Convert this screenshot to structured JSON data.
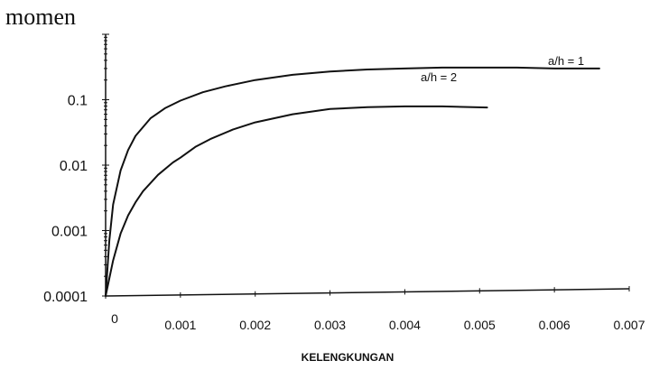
{
  "chart_data": {
    "type": "line",
    "ylabel": "momen",
    "xlabel": "KELENGKUNGAN",
    "y_scale": "log",
    "xlim": [
      0,
      0.007
    ],
    "ylim": [
      0.0001,
      1
    ],
    "x_tick_labels": [
      "0",
      "0.001",
      "0.002",
      "0.003",
      "0.004",
      "0.005",
      "0.006",
      "0.007"
    ],
    "y_tick_labels": [
      "0.0001",
      "0.001",
      "0.01",
      "0.1"
    ],
    "grid": false,
    "series": [
      {
        "name": "a/h = 1",
        "x": [
          0,
          5e-05,
          0.0001,
          0.0002,
          0.0003,
          0.0004,
          0.0006,
          0.0008,
          0.001,
          0.0013,
          0.0016,
          0.002,
          0.0025,
          0.003,
          0.0035,
          0.004,
          0.0045,
          0.005,
          0.0055,
          0.006,
          0.0066
        ],
        "y": [
          0.0001,
          0.0007,
          0.0025,
          0.0083,
          0.017,
          0.028,
          0.052,
          0.075,
          0.097,
          0.13,
          0.16,
          0.2,
          0.24,
          0.27,
          0.29,
          0.3,
          0.31,
          0.31,
          0.31,
          0.3,
          0.3
        ]
      },
      {
        "name": "a/h = 2",
        "x": [
          0,
          0.0001,
          0.0002,
          0.0003,
          0.0004,
          0.0005,
          0.0007,
          0.0009,
          0.001,
          0.0012,
          0.0014,
          0.0017,
          0.002,
          0.0025,
          0.003,
          0.0035,
          0.004,
          0.0045,
          0.0051
        ],
        "y": [
          0.0001,
          0.00035,
          0.0009,
          0.0017,
          0.0027,
          0.004,
          0.0071,
          0.011,
          0.013,
          0.019,
          0.025,
          0.035,
          0.045,
          0.06,
          0.072,
          0.077,
          0.079,
          0.079,
          0.076
        ]
      }
    ]
  }
}
